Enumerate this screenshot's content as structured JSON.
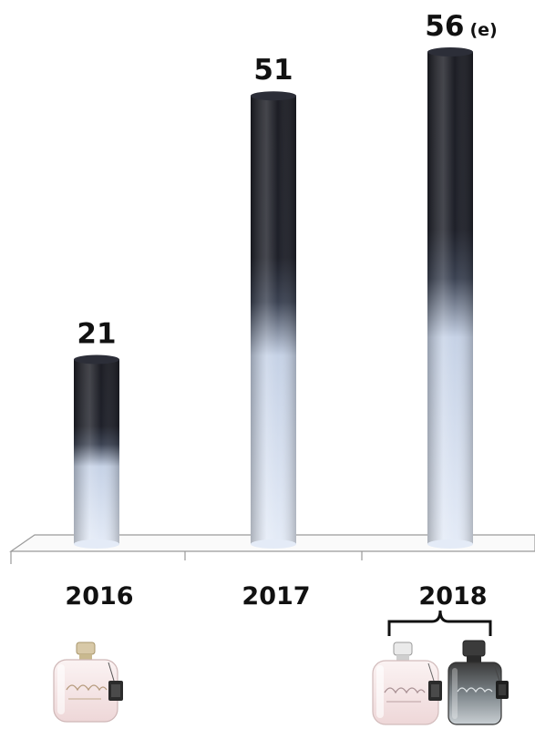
{
  "chart_data": {
    "type": "bar",
    "categories": [
      "2016",
      "2017",
      "2018"
    ],
    "values": [
      21,
      51,
      56
    ],
    "data_labels": [
      "21",
      "51",
      "56"
    ],
    "label_suffixes": [
      "",
      "",
      "(e)"
    ],
    "title": "",
    "xlabel": "",
    "ylabel": "",
    "ylim": [
      0,
      56
    ],
    "grid": false,
    "legend": "none",
    "colors": {
      "bar_top": "#1c1d24",
      "bar_bottom": "#dde6f5",
      "axis": "#888888",
      "text": "#111111"
    },
    "images": [
      {
        "category": "2016",
        "items": [
          "coach-women-perfume-bottle-icon"
        ]
      },
      {
        "category": "2018",
        "items": [
          "coach-women-perfume-bottle-icon",
          "coach-men-perfume-bottle-icon"
        ]
      }
    ]
  }
}
